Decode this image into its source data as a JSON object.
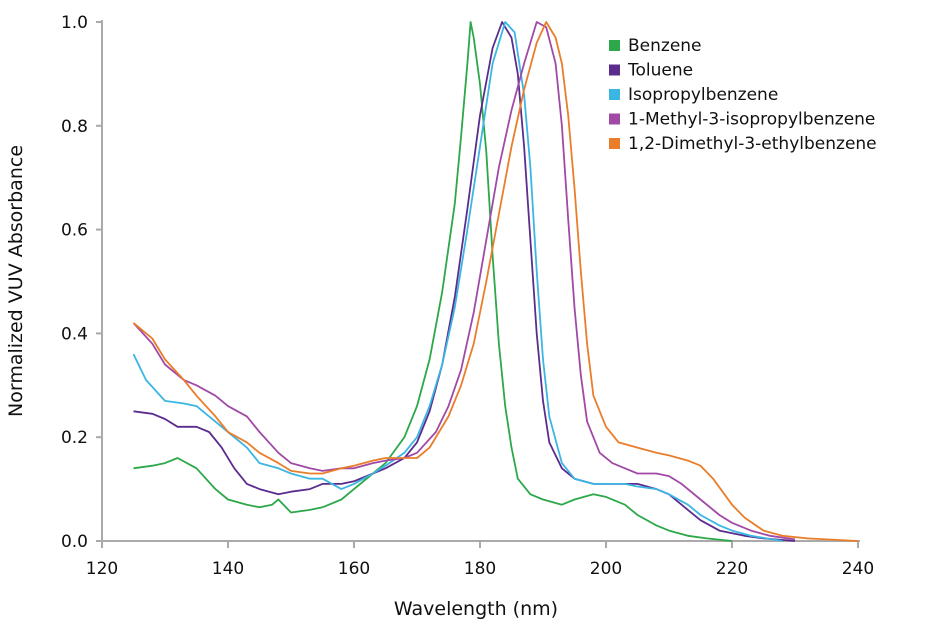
{
  "chart_data": {
    "type": "line",
    "xlabel": "Wavelength (nm)",
    "ylabel": "Normalized VUV Absorbance",
    "xlim": [
      120,
      240
    ],
    "ylim": [
      0,
      1.0
    ],
    "xticks": [
      "120",
      "140",
      "160",
      "180",
      "200",
      "220",
      "240"
    ],
    "yticks": [
      "0.0",
      "0.2",
      "0.4",
      "0.6",
      "0.8",
      "1.0"
    ],
    "grid": false,
    "legend_position": "top-right",
    "series": [
      {
        "name": "Benzene",
        "color": "#2ca84a",
        "x": [
          125,
          128,
          130,
          132,
          135,
          138,
          140,
          143,
          145,
          147,
          148,
          150,
          153,
          155,
          158,
          160,
          163,
          165,
          168,
          170,
          172,
          174,
          176,
          177,
          178,
          178.5,
          179,
          180,
          181,
          182,
          183,
          184,
          185,
          186,
          188,
          190,
          193,
          195,
          198,
          200,
          203,
          205,
          208,
          210,
          213,
          216,
          220
        ],
        "y": [
          0.14,
          0.145,
          0.15,
          0.16,
          0.14,
          0.1,
          0.08,
          0.07,
          0.065,
          0.07,
          0.08,
          0.055,
          0.06,
          0.065,
          0.08,
          0.1,
          0.13,
          0.15,
          0.2,
          0.26,
          0.35,
          0.48,
          0.65,
          0.78,
          0.92,
          1.0,
          0.97,
          0.88,
          0.75,
          0.55,
          0.38,
          0.26,
          0.18,
          0.12,
          0.09,
          0.08,
          0.07,
          0.08,
          0.09,
          0.085,
          0.07,
          0.05,
          0.03,
          0.02,
          0.01,
          0.005,
          0
        ]
      },
      {
        "name": "Toluene",
        "color": "#5b2c8e",
        "x": [
          125,
          128,
          130,
          132,
          135,
          137,
          139,
          141,
          143,
          145,
          148,
          150,
          153,
          155,
          158,
          160,
          163,
          165,
          168,
          170,
          172,
          174,
          176,
          178,
          180,
          182,
          183.5,
          185,
          186,
          187,
          188,
          189,
          190,
          191,
          193,
          195,
          198,
          200,
          203,
          205,
          208,
          210,
          213,
          215,
          218,
          222,
          225,
          230
        ],
        "y": [
          0.25,
          0.245,
          0.235,
          0.22,
          0.22,
          0.21,
          0.18,
          0.14,
          0.11,
          0.1,
          0.09,
          0.095,
          0.1,
          0.11,
          0.11,
          0.115,
          0.13,
          0.14,
          0.16,
          0.19,
          0.25,
          0.34,
          0.47,
          0.64,
          0.82,
          0.95,
          1.0,
          0.97,
          0.9,
          0.76,
          0.58,
          0.4,
          0.27,
          0.19,
          0.14,
          0.12,
          0.11,
          0.11,
          0.11,
          0.11,
          0.1,
          0.09,
          0.06,
          0.04,
          0.02,
          0.01,
          0.005,
          0
        ]
      },
      {
        "name": "Isopropylbenzene",
        "color": "#3bb6e3",
        "x": [
          125,
          127,
          130,
          133,
          135,
          137,
          140,
          143,
          145,
          148,
          150,
          153,
          155,
          158,
          160,
          163,
          165,
          168,
          170,
          172,
          174,
          176,
          178,
          180,
          182,
          184,
          185.5,
          187,
          188,
          189,
          190,
          191,
          193,
          195,
          198,
          200,
          203,
          205,
          208,
          210,
          213,
          215,
          218,
          220,
          223,
          228
        ],
        "y": [
          0.36,
          0.31,
          0.27,
          0.265,
          0.26,
          0.24,
          0.21,
          0.18,
          0.15,
          0.14,
          0.13,
          0.12,
          0.12,
          0.1,
          0.11,
          0.13,
          0.145,
          0.17,
          0.2,
          0.26,
          0.34,
          0.45,
          0.6,
          0.76,
          0.92,
          1.0,
          0.98,
          0.86,
          0.72,
          0.52,
          0.35,
          0.24,
          0.15,
          0.12,
          0.11,
          0.11,
          0.11,
          0.105,
          0.1,
          0.09,
          0.07,
          0.05,
          0.03,
          0.02,
          0.01,
          0
        ]
      },
      {
        "name": "1-Methyl-3-isopropylbenzene",
        "color": "#a04aa6",
        "x": [
          125,
          128,
          130,
          133,
          135,
          138,
          140,
          143,
          145,
          148,
          150,
          153,
          155,
          158,
          160,
          163,
          165,
          168,
          170,
          173,
          175,
          177,
          179,
          181,
          183,
          185,
          187,
          189,
          190.5,
          192,
          193,
          194,
          195,
          196,
          197,
          199,
          201,
          203,
          205,
          208,
          210,
          212,
          215,
          218,
          220,
          223,
          226,
          230
        ],
        "y": [
          0.42,
          0.38,
          0.34,
          0.31,
          0.3,
          0.28,
          0.26,
          0.24,
          0.21,
          0.17,
          0.15,
          0.14,
          0.135,
          0.14,
          0.14,
          0.15,
          0.155,
          0.16,
          0.17,
          0.21,
          0.26,
          0.33,
          0.44,
          0.58,
          0.72,
          0.83,
          0.92,
          1.0,
          0.99,
          0.92,
          0.8,
          0.62,
          0.45,
          0.32,
          0.23,
          0.17,
          0.15,
          0.14,
          0.13,
          0.13,
          0.125,
          0.11,
          0.08,
          0.05,
          0.035,
          0.02,
          0.01,
          0.003
        ]
      },
      {
        "name": "1,2-Dimethyl-3-ethylbenzene",
        "color": "#ea7d2a",
        "x": [
          125,
          128,
          130,
          133,
          135,
          138,
          140,
          143,
          145,
          148,
          150,
          153,
          155,
          158,
          160,
          163,
          165,
          168,
          170,
          172,
          175,
          177,
          179,
          181,
          183,
          185,
          187,
          189,
          190.5,
          192,
          193,
          194,
          195,
          196,
          197,
          198,
          200,
          202,
          205,
          208,
          210,
          213,
          215,
          217,
          220,
          222,
          225,
          228,
          232,
          240
        ],
        "y": [
          0.42,
          0.39,
          0.35,
          0.31,
          0.28,
          0.24,
          0.21,
          0.19,
          0.17,
          0.15,
          0.135,
          0.13,
          0.13,
          0.14,
          0.145,
          0.155,
          0.16,
          0.16,
          0.16,
          0.18,
          0.24,
          0.3,
          0.38,
          0.5,
          0.63,
          0.76,
          0.87,
          0.96,
          1.0,
          0.97,
          0.92,
          0.82,
          0.68,
          0.52,
          0.38,
          0.28,
          0.22,
          0.19,
          0.18,
          0.17,
          0.165,
          0.155,
          0.145,
          0.12,
          0.07,
          0.045,
          0.02,
          0.01,
          0.005,
          0
        ]
      }
    ]
  }
}
